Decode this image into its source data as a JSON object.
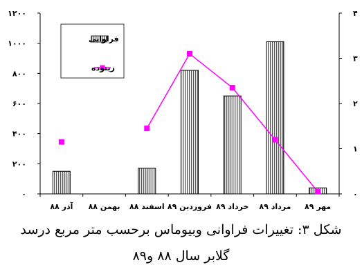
{
  "chart_data": {
    "type": "bar",
    "categories": [
      "آذر ۸۸",
      "بهمن ۸۸",
      "اسفند ۸۸",
      "فروردین ۸۹",
      "خرداد ۸۹",
      "مرداد ۸۹",
      "مهر ۸۹"
    ],
    "series": [
      {
        "name": "فراوانی",
        "type": "bar",
        "axis": "left",
        "pattern": "vertical-hatch",
        "values": [
          150,
          0,
          170,
          820,
          650,
          1010,
          40
        ]
      },
      {
        "name": "زیتوده",
        "type": "line",
        "axis": "right",
        "color": "#ff00ff",
        "values": [
          1.15,
          null,
          1.45,
          3.1,
          2.35,
          1.2,
          0.05
        ]
      }
    ],
    "y_left": {
      "ylim": [
        0,
        1200
      ],
      "ticks": [
        "۰",
        "۲۰۰",
        "۴۰۰",
        "۶۰۰",
        "۸۰۰",
        "۱۰۰۰",
        "۱۲۰۰"
      ]
    },
    "y_right": {
      "ylim": [
        0,
        4
      ],
      "ticks": [
        "۰",
        "۱",
        "۲",
        "۳",
        "۴"
      ]
    },
    "legend": {
      "placement": "top-left"
    },
    "grid": false
  },
  "caption": {
    "line1": "شکل ۳: تغییرات فراوانی وبیوماس برحسب متر مربع درسد",
    "line2": "گلابر سال ۸۸ و۸۹"
  }
}
